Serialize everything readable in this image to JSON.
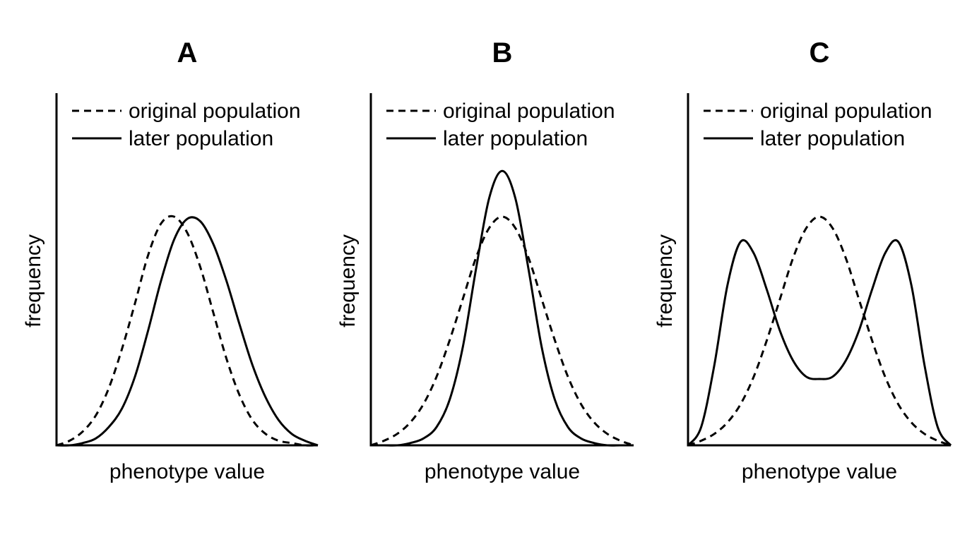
{
  "chart_data": [
    {
      "type": "line",
      "title": "A",
      "xlabel": "phenotype value",
      "ylabel": "frequency",
      "legend": "top-left",
      "grid": false,
      "xlim": [
        0,
        10
      ],
      "ylim": [
        0,
        1.1
      ],
      "series": [
        {
          "name": "original population",
          "style": "dashed",
          "x": [
            0,
            0.5,
            1,
            1.5,
            2,
            2.5,
            3,
            3.5,
            4,
            4.5,
            5,
            5.5,
            6,
            6.5,
            7,
            7.5,
            8,
            8.5,
            9,
            9.5,
            10
          ],
          "y": [
            0,
            0.02,
            0.06,
            0.13,
            0.25,
            0.42,
            0.62,
            0.83,
            0.97,
            1.0,
            0.93,
            0.78,
            0.58,
            0.38,
            0.22,
            0.11,
            0.05,
            0.02,
            0.01,
            0.0,
            0
          ]
        },
        {
          "name": "later population",
          "style": "solid",
          "x": [
            0,
            0.5,
            1,
            1.5,
            2,
            2.5,
            3,
            3.5,
            4,
            4.5,
            5,
            5.5,
            6,
            6.5,
            7,
            7.5,
            8,
            8.5,
            9,
            9.5,
            10
          ],
          "y": [
            0,
            0.0,
            0.01,
            0.03,
            0.08,
            0.16,
            0.3,
            0.5,
            0.72,
            0.9,
            0.99,
            0.98,
            0.88,
            0.72,
            0.53,
            0.35,
            0.21,
            0.11,
            0.05,
            0.02,
            0
          ]
        }
      ]
    },
    {
      "type": "line",
      "title": "B",
      "xlabel": "phenotype value",
      "ylabel": "frequency",
      "legend": "top-left",
      "grid": false,
      "xlim": [
        0,
        10
      ],
      "ylim": [
        0,
        1.1
      ],
      "series": [
        {
          "name": "original population",
          "style": "dashed",
          "x": [
            0,
            0.5,
            1,
            1.5,
            2,
            2.5,
            3,
            3.5,
            4,
            4.5,
            5,
            5.5,
            6,
            6.5,
            7,
            7.5,
            8,
            8.5,
            9,
            9.5,
            10
          ],
          "y": [
            0,
            0.02,
            0.05,
            0.1,
            0.18,
            0.3,
            0.46,
            0.64,
            0.82,
            0.95,
            1.0,
            0.95,
            0.82,
            0.64,
            0.46,
            0.3,
            0.18,
            0.1,
            0.05,
            0.02,
            0
          ]
        },
        {
          "name": "later population",
          "style": "solid",
          "x": [
            0,
            0.5,
            1,
            1.5,
            2,
            2.5,
            3,
            3.5,
            4,
            4.5,
            5,
            5.5,
            6,
            6.5,
            7,
            7.5,
            8,
            8.5,
            9,
            9.5,
            10
          ],
          "y": [
            0,
            0.0,
            0.0,
            0.01,
            0.03,
            0.08,
            0.2,
            0.43,
            0.77,
            1.08,
            1.2,
            1.08,
            0.77,
            0.43,
            0.2,
            0.08,
            0.03,
            0.01,
            0.0,
            0.0,
            0
          ]
        }
      ]
    },
    {
      "type": "line",
      "title": "C",
      "xlabel": "phenotype value",
      "ylabel": "frequency",
      "legend": "top-left",
      "grid": false,
      "xlim": [
        0,
        10
      ],
      "ylim": [
        0,
        1.1
      ],
      "series": [
        {
          "name": "original population",
          "style": "dashed",
          "x": [
            0,
            0.5,
            1,
            1.5,
            2,
            2.5,
            3,
            3.5,
            4,
            4.5,
            5,
            5.5,
            6,
            6.5,
            7,
            7.5,
            8,
            8.5,
            9,
            9.5,
            10
          ],
          "y": [
            0,
            0.02,
            0.05,
            0.1,
            0.18,
            0.3,
            0.46,
            0.64,
            0.82,
            0.95,
            1.0,
            0.95,
            0.82,
            0.64,
            0.46,
            0.3,
            0.18,
            0.1,
            0.05,
            0.02,
            0
          ]
        },
        {
          "name": "later population",
          "style": "solid",
          "x": [
            0,
            0.5,
            1,
            1.5,
            2,
            2.5,
            3,
            3.5,
            4,
            4.5,
            5,
            5.5,
            6,
            6.5,
            7,
            7.5,
            8,
            8.5,
            9,
            9.5,
            10
          ],
          "y": [
            0,
            0.08,
            0.35,
            0.7,
            0.89,
            0.84,
            0.68,
            0.5,
            0.37,
            0.3,
            0.29,
            0.3,
            0.37,
            0.5,
            0.68,
            0.84,
            0.89,
            0.7,
            0.35,
            0.08,
            0
          ]
        }
      ]
    }
  ]
}
